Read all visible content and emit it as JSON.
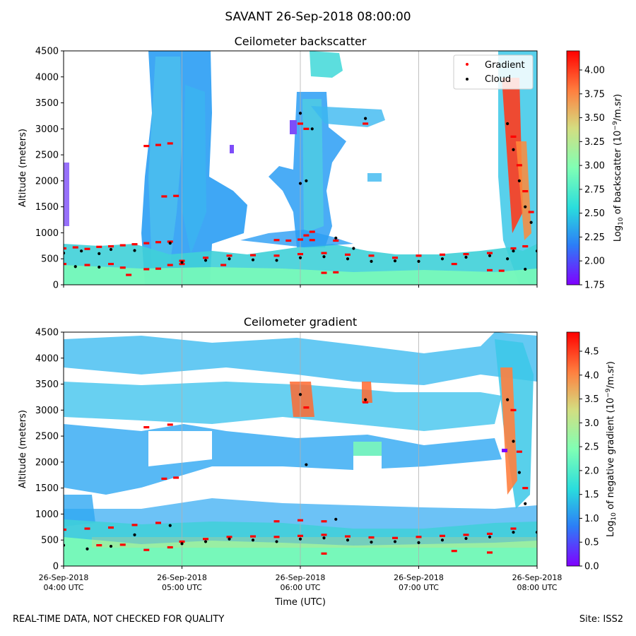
{
  "figure": {
    "suptitle": "SAVANT 26-Sep-2018 08:00:00",
    "footer_left": "REAL-TIME DATA, NOT CHECKED FOR QUALITY",
    "footer_right": "Site: ISS2"
  },
  "chart_data": [
    {
      "type": "heatmap",
      "title": "Ceilometer backscatter",
      "ylabel": "Altitude (meters)",
      "xlabel": "",
      "ylim": [
        0,
        4500
      ],
      "yticks": [
        0,
        500,
        1000,
        1500,
        2000,
        2500,
        3000,
        3500,
        4000,
        4500
      ],
      "xlim": [
        "04:00",
        "08:00"
      ],
      "grid": "vertical lines at 05:00, 06:00, 07:00",
      "colormap": "rainbow",
      "colorbar": {
        "label": "Log10 of backscatter (10^-9/m.sr)",
        "range": [
          1.75,
          4.2
        ],
        "ticks": [
          "1.75",
          "2.00",
          "2.25",
          "2.50",
          "2.75",
          "3.00",
          "3.25",
          "3.50",
          "3.75",
          "4.00"
        ]
      },
      "legend": {
        "placement": "top-right",
        "entries": [
          {
            "label": "Gradient",
            "color": "#ff0000"
          },
          {
            "label": "Cloud",
            "color": "#000000"
          }
        ]
      },
      "series": [
        {
          "name": "Gradient",
          "color": "#ff0000",
          "points": [
            [
              0.0,
              700
            ],
            [
              0.1,
              720
            ],
            [
              0.2,
              690
            ],
            [
              0.3,
              730
            ],
            [
              0.4,
              740
            ],
            [
              0.5,
              760
            ],
            [
              0.6,
              780
            ],
            [
              0.7,
              800
            ],
            [
              0.8,
              820
            ],
            [
              0.9,
              830
            ],
            [
              1.0,
              460
            ],
            [
              1.2,
              520
            ],
            [
              1.4,
              560
            ],
            [
              1.6,
              570
            ],
            [
              1.8,
              560
            ],
            [
              2.0,
              590
            ],
            [
              2.2,
              610
            ],
            [
              2.4,
              580
            ],
            [
              2.6,
              560
            ],
            [
              2.8,
              520
            ],
            [
              3.0,
              560
            ],
            [
              3.2,
              580
            ],
            [
              3.4,
              590
            ],
            [
              3.6,
              610
            ],
            [
              3.8,
              700
            ],
            [
              3.9,
              740
            ],
            [
              0.0,
              400
            ],
            [
              0.2,
              380
            ],
            [
              0.4,
              400
            ],
            [
              0.5,
              330
            ],
            [
              0.7,
              300
            ],
            [
              0.8,
              310
            ],
            [
              0.9,
              380
            ],
            [
              1.0,
              400
            ],
            [
              0.7,
              2670
            ],
            [
              0.8,
              2690
            ],
            [
              0.9,
              2720
            ],
            [
              0.85,
              1700
            ],
            [
              0.95,
              1710
            ],
            [
              1.8,
              860
            ],
            [
              1.9,
              850
            ],
            [
              2.0,
              870
            ],
            [
              2.1,
              860
            ],
            [
              2.3,
              850
            ],
            [
              3.3,
              400
            ],
            [
              3.6,
              280
            ],
            [
              3.7,
              270
            ],
            [
              2.05,
              950
            ],
            [
              2.1,
              1020
            ],
            [
              2.0,
              3100
            ],
            [
              2.05,
              3000
            ],
            [
              2.55,
              3100
            ],
            [
              3.8,
              2850
            ],
            [
              3.85,
              2300
            ],
            [
              3.9,
              1800
            ],
            [
              3.95,
              1400
            ],
            [
              2.2,
              230
            ],
            [
              2.3,
              240
            ],
            [
              0.55,
              190
            ],
            [
              1.35,
              380
            ]
          ]
        },
        {
          "name": "Cloud",
          "color": "#000000",
          "points": [
            [
              0.0,
              610
            ],
            [
              0.15,
              650
            ],
            [
              0.3,
              600
            ],
            [
              0.4,
              680
            ],
            [
              0.6,
              660
            ],
            [
              0.9,
              800
            ],
            [
              1.0,
              430
            ],
            [
              1.2,
              470
            ],
            [
              1.4,
              500
            ],
            [
              1.6,
              480
            ],
            [
              1.8,
              470
            ],
            [
              2.0,
              520
            ],
            [
              2.2,
              540
            ],
            [
              2.4,
              500
            ],
            [
              2.6,
              450
            ],
            [
              2.8,
              460
            ],
            [
              3.0,
              450
            ],
            [
              3.2,
              500
            ],
            [
              3.4,
              530
            ],
            [
              3.6,
              560
            ],
            [
              3.8,
              650
            ],
            [
              0.1,
              350
            ],
            [
              0.3,
              340
            ],
            [
              2.0,
              1950
            ],
            [
              2.05,
              2000
            ],
            [
              2.0,
              3300
            ],
            [
              2.1,
              3000
            ],
            [
              2.55,
              3200
            ],
            [
              3.75,
              3100
            ],
            [
              3.8,
              2600
            ],
            [
              3.85,
              2000
            ],
            [
              3.9,
              1500
            ],
            [
              3.95,
              1200
            ],
            [
              3.75,
              500
            ],
            [
              3.9,
              300
            ],
            [
              4.0,
              650
            ],
            [
              2.3,
              900
            ],
            [
              2.45,
              700
            ]
          ]
        }
      ]
    },
    {
      "type": "heatmap",
      "title": "Ceilometer gradient",
      "ylabel": "Altitude (meters)",
      "xlabel": "Time (UTC)",
      "ylim": [
        0,
        4500
      ],
      "yticks": [
        0,
        500,
        1000,
        1500,
        2000,
        2500,
        3000,
        3500,
        4000,
        4500
      ],
      "xlim": [
        "04:00",
        "08:00"
      ],
      "xticks": [
        {
          "line1": "26-Sep-2018",
          "line2": "04:00 UTC"
        },
        {
          "line1": "26-Sep-2018",
          "line2": "05:00 UTC"
        },
        {
          "line1": "26-Sep-2018",
          "line2": "06:00 UTC"
        },
        {
          "line1": "26-Sep-2018",
          "line2": "07:00 UTC"
        },
        {
          "line1": "26-Sep-2018",
          "line2": "08:00 UTC"
        }
      ],
      "grid": "vertical lines at 05:00, 06:00, 07:00",
      "colormap": "rainbow",
      "colorbar": {
        "label": "Log10 of negative gradient (10^-9/m.sr)",
        "range": [
          0.0,
          4.9
        ],
        "ticks": [
          "0.0",
          "0.5",
          "1.0",
          "1.5",
          "2.0",
          "2.5",
          "3.0",
          "3.5",
          "4.0",
          "4.5"
        ]
      },
      "series": [
        {
          "name": "Gradient",
          "color": "#ff0000",
          "points": [
            [
              0.0,
              700
            ],
            [
              0.2,
              720
            ],
            [
              0.4,
              740
            ],
            [
              0.6,
              790
            ],
            [
              0.8,
              830
            ],
            [
              1.0,
              470
            ],
            [
              1.2,
              520
            ],
            [
              1.4,
              560
            ],
            [
              1.6,
              570
            ],
            [
              1.8,
              560
            ],
            [
              2.0,
              580
            ],
            [
              2.2,
              600
            ],
            [
              2.4,
              570
            ],
            [
              2.6,
              550
            ],
            [
              2.8,
              540
            ],
            [
              3.0,
              560
            ],
            [
              3.2,
              580
            ],
            [
              3.4,
              600
            ],
            [
              3.6,
              620
            ],
            [
              3.8,
              720
            ],
            [
              0.3,
              400
            ],
            [
              0.5,
              410
            ],
            [
              0.7,
              310
            ],
            [
              0.9,
              360
            ],
            [
              0.7,
              2670
            ],
            [
              0.9,
              2720
            ],
            [
              0.85,
              1680
            ],
            [
              0.95,
              1700
            ],
            [
              1.8,
              860
            ],
            [
              2.0,
              880
            ],
            [
              2.2,
              860
            ],
            [
              2.05,
              3050
            ],
            [
              2.55,
              3150
            ],
            [
              3.8,
              3000
            ],
            [
              3.85,
              2200
            ],
            [
              3.9,
              1500
            ],
            [
              3.3,
              290
            ],
            [
              3.6,
              260
            ],
            [
              2.2,
              240
            ]
          ]
        },
        {
          "name": "Cloud",
          "color": "#000000",
          "points": [
            [
              0.0,
              400
            ],
            [
              0.2,
              330
            ],
            [
              0.4,
              380
            ],
            [
              0.6,
              600
            ],
            [
              0.9,
              780
            ],
            [
              1.0,
              430
            ],
            [
              1.2,
              470
            ],
            [
              1.4,
              520
            ],
            [
              1.6,
              500
            ],
            [
              1.8,
              470
            ],
            [
              2.0,
              520
            ],
            [
              2.2,
              540
            ],
            [
              2.4,
              500
            ],
            [
              2.6,
              460
            ],
            [
              2.8,
              470
            ],
            [
              3.0,
              450
            ],
            [
              3.2,
              500
            ],
            [
              3.4,
              530
            ],
            [
              3.6,
              560
            ],
            [
              3.8,
              650
            ],
            [
              2.0,
              3300
            ],
            [
              2.05,
              1950
            ],
            [
              2.55,
              3200
            ],
            [
              3.75,
              3200
            ],
            [
              3.8,
              2400
            ],
            [
              3.85,
              1800
            ],
            [
              3.9,
              1200
            ],
            [
              4.0,
              650
            ],
            [
              2.3,
              900
            ]
          ]
        }
      ]
    }
  ]
}
